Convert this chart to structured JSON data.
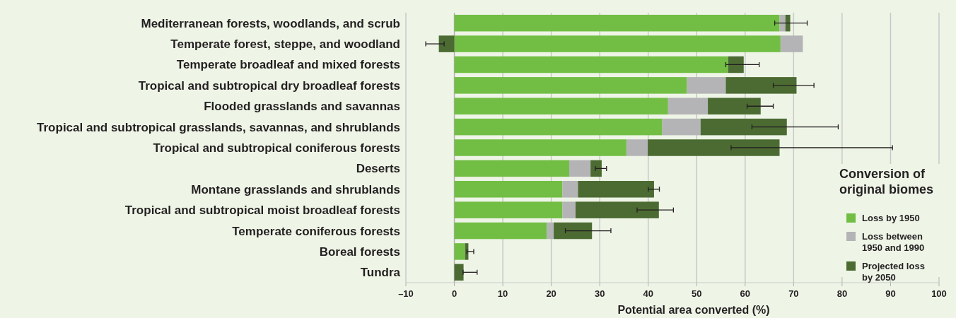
{
  "chart_data": {
    "type": "bar",
    "orientation": "horizontal",
    "stacked": true,
    "categories": [
      "Mediterranean forests, woodlands, and scrub",
      "Temperate forest, steppe, and woodland",
      "Temperate broadleaf and mixed forests",
      "Tropical and subtropical dry broadleaf forests",
      "Flooded grasslands and savannas",
      "Tropical and subtropical grasslands, savannas, and shrublands",
      "Tropical and subtropical coniferous forests",
      "Deserts",
      "Montane grasslands and shrublands",
      "Tropical and subtropical moist broadleaf forests",
      "Temperate coniferous forests",
      "Boreal forests",
      "Tundra"
    ],
    "series": [
      {
        "name": "Loss by 1950",
        "color": "#72be44",
        "values": [
          67.1,
          67.3,
          56.5,
          48.0,
          44.1,
          42.9,
          35.5,
          23.7,
          22.3,
          22.3,
          19.1,
          2.2,
          null
        ]
      },
      {
        "name": "Loss between 1950 and 1990",
        "color": "#b4b4b6",
        "values": [
          1.2,
          4.6,
          null,
          8.0,
          8.2,
          7.9,
          4.4,
          4.4,
          3.2,
          2.7,
          1.4,
          null,
          null
        ]
      },
      {
        "name": "Projected loss by 2050",
        "color": "#4c6b33",
        "values": [
          1.0,
          -3.2,
          3.2,
          14.6,
          10.9,
          17.8,
          27.2,
          2.3,
          15.7,
          17.2,
          7.9,
          0.7,
          1.9
        ],
        "errors": [
          [
            66.1,
            72.8
          ],
          [
            -5.9,
            -2.1
          ],
          [
            56.0,
            62.9
          ],
          [
            65.8,
            74.2
          ],
          [
            60.4,
            65.8
          ],
          [
            61.4,
            79.2
          ],
          [
            57.1,
            90.4
          ],
          [
            29.1,
            31.4
          ],
          [
            40.0,
            42.3
          ],
          [
            37.7,
            45.2
          ],
          [
            22.9,
            32.3
          ],
          [
            2.6,
            4.0
          ],
          [
            1.8,
            4.7
          ]
        ]
      }
    ],
    "xlim": [
      -10,
      100
    ],
    "xticks": [
      {
        "value": -10,
        "label": "–10"
      },
      0,
      10,
      20,
      30,
      40,
      50,
      60,
      70,
      80,
      90,
      100
    ],
    "xlabel": "Potential area converted (%)",
    "legend_title": "Conversion of original biomes",
    "legend": "right",
    "grid": "x"
  }
}
